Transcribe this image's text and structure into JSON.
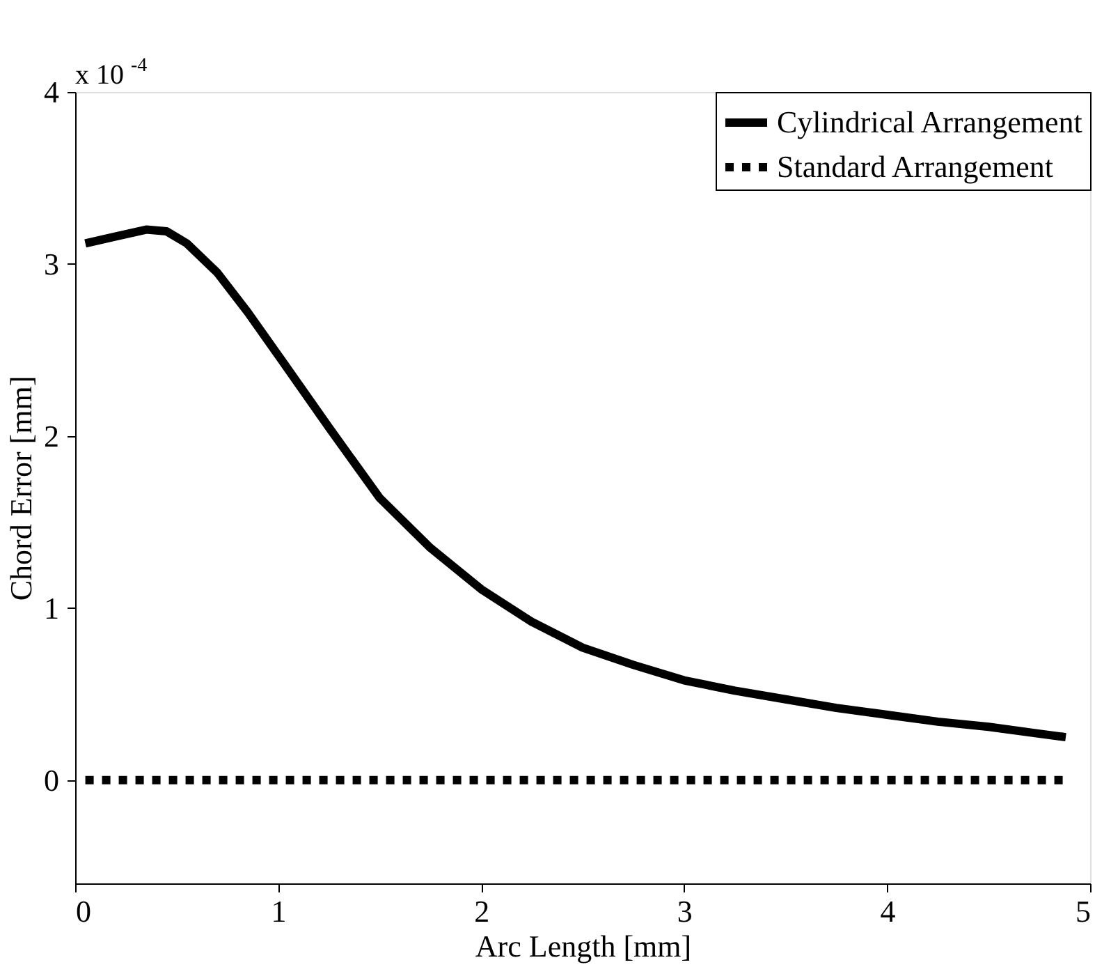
{
  "chart_data": {
    "type": "line",
    "xlabel": "Arc Length [mm]",
    "ylabel": "Chord Error [mm]",
    "annotations": [
      "x 10$^{-4}$"
    ],
    "xlim": [
      0,
      5
    ],
    "xticks": [
      0,
      1,
      2,
      3,
      4,
      5
    ],
    "ylim": [
      -0.6,
      4
    ],
    "yticks": [
      0,
      1,
      2,
      3,
      4
    ],
    "grid": false,
    "legend": "top right",
    "series": [
      {
        "name": "Cylindrical Arrangement",
        "color": "#000000",
        "line_style": "solid",
        "x": [
          0.05,
          0.2,
          0.35,
          0.45,
          0.55,
          0.7,
          0.85,
          1.0,
          1.25,
          1.5,
          1.75,
          2.0,
          2.25,
          2.5,
          2.75,
          3.0,
          3.25,
          3.5,
          3.75,
          4.0,
          4.25,
          4.5,
          4.75,
          4.88
        ],
        "values": [
          3.12,
          3.16,
          3.2,
          3.19,
          3.12,
          2.95,
          2.72,
          2.47,
          2.05,
          1.64,
          1.35,
          1.11,
          0.92,
          0.77,
          0.67,
          0.58,
          0.52,
          0.47,
          0.42,
          0.38,
          0.34,
          0.31,
          0.27,
          0.25
        ]
      },
      {
        "name": "Standard Arrangement",
        "color": "#000000",
        "line_style": "dotted",
        "x": [
          0.05,
          4.88
        ],
        "values": [
          0,
          0
        ]
      }
    ]
  }
}
